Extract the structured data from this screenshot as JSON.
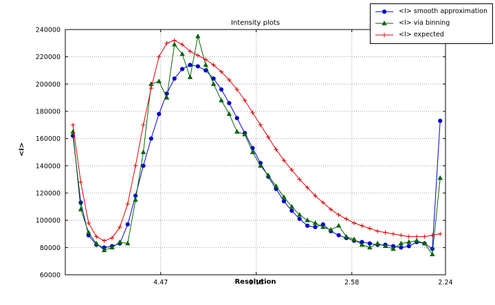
{
  "chart_data": {
    "type": "line",
    "title": "Intensity plots",
    "xlabel": "Resolution",
    "ylabel": "<I>",
    "grid": true,
    "legend_position": "upper right, overlapping top-right corner of axes",
    "xlim": [
      0,
      0.1993
    ],
    "ylim": [
      60000,
      240000
    ],
    "yticks": [
      60000,
      80000,
      100000,
      120000,
      140000,
      160000,
      180000,
      200000,
      220000,
      240000
    ],
    "xticks": [
      {
        "label": "4.47",
        "x": 0.05
      },
      {
        "label": "3.16",
        "x": 0.1001
      },
      {
        "label": "2.58",
        "x": 0.1502
      },
      {
        "label": "2.24",
        "x": 0.1993
      }
    ],
    "x": [
      0.004,
      0.0081,
      0.0122,
      0.0163,
      0.0204,
      0.0245,
      0.0286,
      0.0327,
      0.0368,
      0.0409,
      0.045,
      0.0491,
      0.0532,
      0.0572,
      0.0613,
      0.0654,
      0.0695,
      0.0736,
      0.0777,
      0.0818,
      0.0859,
      0.09,
      0.0941,
      0.0982,
      0.1023,
      0.1064,
      0.1105,
      0.1146,
      0.1187,
      0.1228,
      0.1269,
      0.131,
      0.1351,
      0.1392,
      0.1433,
      0.1473,
      0.1514,
      0.1555,
      0.1596,
      0.1637,
      0.1678,
      0.1719,
      0.176,
      0.1801,
      0.1842,
      0.1883,
      0.1924,
      0.1965
    ],
    "series": [
      {
        "name": "<I> smooth approximation",
        "color": "#0000cc",
        "marker": "circle",
        "values": [
          162000,
          113000,
          89000,
          82000,
          80000,
          81000,
          83000,
          97000,
          118000,
          140000,
          160000,
          178000,
          193000,
          204000,
          211000,
          214000,
          213000,
          210000,
          204000,
          196000,
          186000,
          175000,
          164000,
          153000,
          142000,
          132000,
          123000,
          114000,
          107000,
          101000,
          96000,
          95000,
          97000,
          92000,
          89000,
          87000,
          85000,
          84000,
          83000,
          82000,
          82000,
          81000,
          80000,
          81000,
          84000,
          83000,
          79000,
          173000
        ]
      },
      {
        "name": "<I> via binning",
        "color": "#006400",
        "marker": "triangle",
        "values": [
          165000,
          108000,
          91000,
          83000,
          78000,
          80000,
          84000,
          83000,
          115000,
          150000,
          200000,
          202000,
          190000,
          229000,
          222000,
          205000,
          235000,
          214000,
          200000,
          188000,
          178000,
          165000,
          163000,
          150000,
          140000,
          133000,
          125000,
          117000,
          110000,
          104000,
          100000,
          98000,
          95000,
          93000,
          96000,
          88000,
          86000,
          82000,
          80000,
          83000,
          81000,
          79000,
          83000,
          84000,
          85000,
          83000,
          75000,
          131000
        ]
      },
      {
        "name": "<I> expected",
        "color": "#dd0000",
        "marker": "plus",
        "values": [
          170000,
          128000,
          98000,
          88000,
          85000,
          87000,
          95000,
          112000,
          140000,
          170000,
          197000,
          220000,
          230000,
          232000,
          229000,
          224000,
          221000,
          218000,
          214000,
          209000,
          203000,
          196000,
          188000,
          179000,
          170000,
          161000,
          152000,
          144000,
          137000,
          130000,
          124000,
          118000,
          113000,
          108000,
          104000,
          101000,
          98000,
          96000,
          94000,
          92000,
          91000,
          90000,
          89000,
          88000,
          88000,
          88000,
          89000,
          90000
        ]
      }
    ]
  }
}
